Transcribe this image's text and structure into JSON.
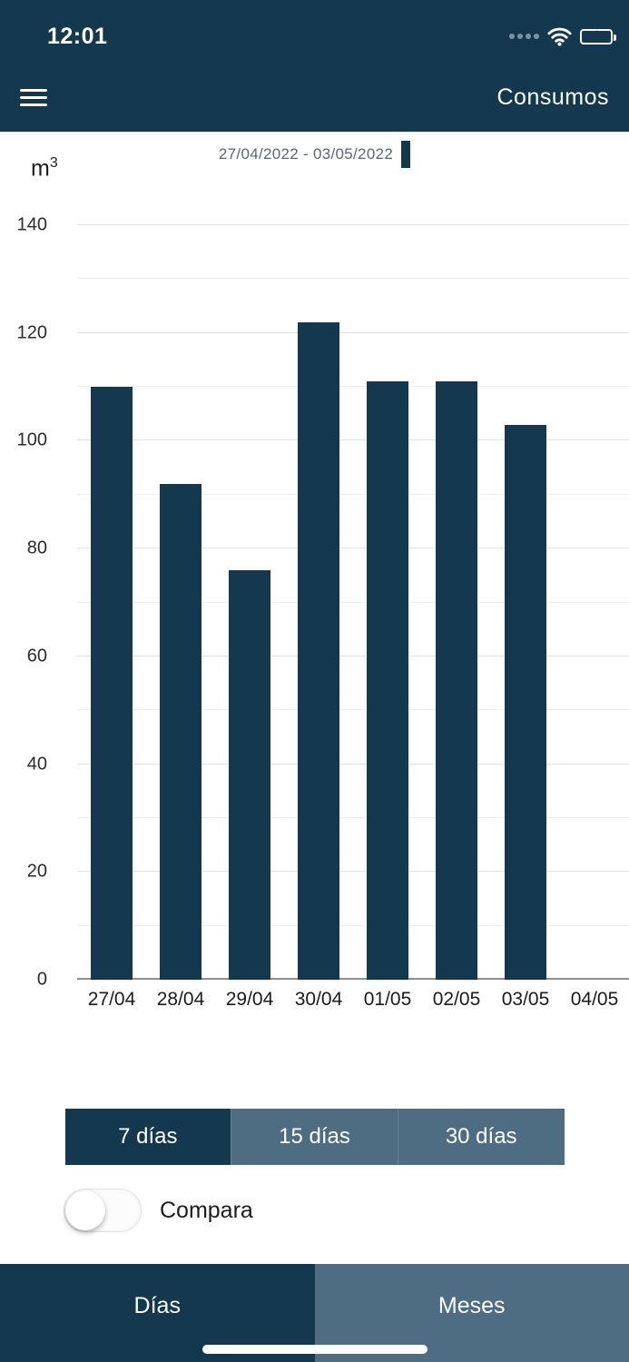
{
  "colors": {
    "primary": "#14384E",
    "secondary": "#4E6C82",
    "grid": "#e2e2e2",
    "battery_green": "#32d74b"
  },
  "status_bar": {
    "time": "12:01"
  },
  "header": {
    "title": "Consumos"
  },
  "legend": {
    "label": "27/04/2022 - 03/05/2022"
  },
  "chart_data": {
    "type": "bar",
    "title": "",
    "unit_base": "m",
    "unit_exp": "3",
    "categories": [
      "27/04",
      "28/04",
      "29/04",
      "30/04",
      "01/05",
      "02/05",
      "03/05",
      "04/05"
    ],
    "values": [
      110,
      92,
      76,
      122,
      111,
      111,
      103,
      0
    ],
    "ylim": [
      0,
      140
    ],
    "yticks": [
      0,
      20,
      40,
      60,
      80,
      100,
      120,
      140
    ],
    "ytick_step": 20,
    "minor_step": 10,
    "grid": true,
    "bar_color": "#14384E",
    "legend_position": "top",
    "xlabel": "",
    "ylabel": "m3"
  },
  "controls": {
    "range_options": [
      {
        "label": "7 días",
        "selected": true
      },
      {
        "label": "15 días",
        "selected": false
      },
      {
        "label": "30 días",
        "selected": false
      }
    ],
    "compare_label": "Compara",
    "compare_on": false
  },
  "tabs": [
    {
      "label": "Días",
      "selected": true
    },
    {
      "label": "Meses",
      "selected": false
    }
  ]
}
